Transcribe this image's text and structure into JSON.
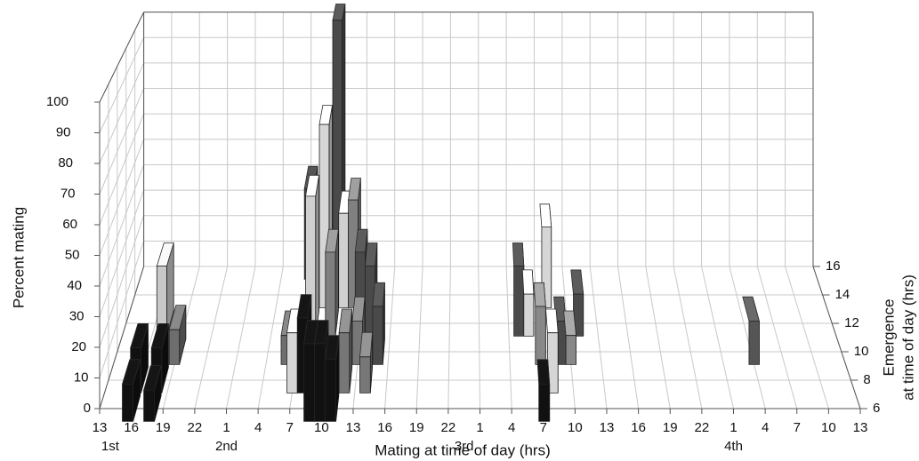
{
  "chart_data": {
    "type": "bar3d",
    "y_label": "Percent mating",
    "x_label": "Mating at time of day (hrs)",
    "depth_label": [
      "Emergence",
      "at time of day (hrs)"
    ],
    "ylim": [
      0,
      100
    ],
    "yticks": [
      0,
      10,
      20,
      30,
      40,
      50,
      60,
      70,
      80,
      90,
      100
    ],
    "xlim": [
      0,
      72
    ],
    "xticks": [
      {
        "value": 0,
        "label": "13"
      },
      {
        "value": 3,
        "label": "16"
      },
      {
        "value": 6,
        "label": "19"
      },
      {
        "value": 9,
        "label": "22"
      },
      {
        "value": 12,
        "label": "1"
      },
      {
        "value": 15,
        "label": "4"
      },
      {
        "value": 18,
        "label": "7"
      },
      {
        "value": 21,
        "label": "10"
      },
      {
        "value": 24,
        "label": "13"
      },
      {
        "value": 27,
        "label": "16"
      },
      {
        "value": 30,
        "label": "19"
      },
      {
        "value": 33,
        "label": "22"
      },
      {
        "value": 36,
        "label": "1"
      },
      {
        "value": 39,
        "label": "4"
      },
      {
        "value": 42,
        "label": "7"
      },
      {
        "value": 45,
        "label": "10"
      },
      {
        "value": 48,
        "label": "13"
      },
      {
        "value": 51,
        "label": "16"
      },
      {
        "value": 54,
        "label": "19"
      },
      {
        "value": 57,
        "label": "22"
      },
      {
        "value": 60,
        "label": "1"
      },
      {
        "value": 63,
        "label": "4"
      },
      {
        "value": 66,
        "label": "7"
      },
      {
        "value": 69,
        "label": "10"
      },
      {
        "value": 72,
        "label": "13"
      }
    ],
    "day_ticks": [
      {
        "value": 1,
        "label": "1st"
      },
      {
        "value": 12,
        "label": "2nd"
      },
      {
        "value": 34.5,
        "label": "3rd"
      },
      {
        "value": 60,
        "label": "4th"
      }
    ],
    "depthlim": [
      6,
      16
    ],
    "depthticks": [
      6,
      8,
      10,
      12,
      14,
      16
    ],
    "grid": true,
    "bars": {
      "x": [
        3,
        5,
        3,
        5,
        4,
        6,
        17,
        18,
        19,
        20,
        19,
        20,
        21,
        22,
        21,
        23,
        24,
        25,
        26,
        19,
        20,
        21,
        22,
        23,
        18,
        24,
        25,
        40,
        41,
        42,
        43,
        42,
        43,
        44,
        45,
        46,
        63
      ],
      "emergence": [
        6,
        6,
        8,
        8,
        12,
        10,
        10,
        16,
        14,
        16,
        12,
        14,
        16,
        14,
        12,
        14,
        12,
        12,
        10,
        8,
        6,
        6,
        6,
        8,
        8,
        10,
        8,
        12,
        12,
        10,
        14,
        6,
        8,
        10,
        10,
        12,
        10
      ],
      "values": [
        12,
        10,
        15,
        15,
        25,
        12,
        10,
        35,
        35,
        35,
        50,
        68,
        100,
        35,
        30,
        40,
        30,
        25,
        20,
        25,
        25,
        25,
        20,
        20,
        20,
        15,
        12,
        25,
        15,
        20,
        30,
        12,
        20,
        15,
        10,
        15,
        15
      ],
      "colors": [
        "#111111",
        "#111111",
        "#111111",
        "#111111",
        "#c8c8c8",
        "#6e6e6e",
        "#6e6e6e",
        "#444444",
        "#444444",
        "#777777",
        "#d0d0d0",
        "#d6d6d6",
        "#4a4a4a",
        "#d0d0d0",
        "#808080",
        "#808080",
        "#4a4a4a",
        "#4a4a4a",
        "#4a4a4a",
        "#111111",
        "#111111",
        "#111111",
        "#111111",
        "#777777",
        "#d6d6d6",
        "#777777",
        "#777777",
        "#4a4a4a",
        "#d6d6d6",
        "#888888",
        "#d6d6d6",
        "#111111",
        "#d6d6d6",
        "#4a4a4a",
        "#888888",
        "#4a4a4a",
        "#555555"
      ]
    }
  }
}
